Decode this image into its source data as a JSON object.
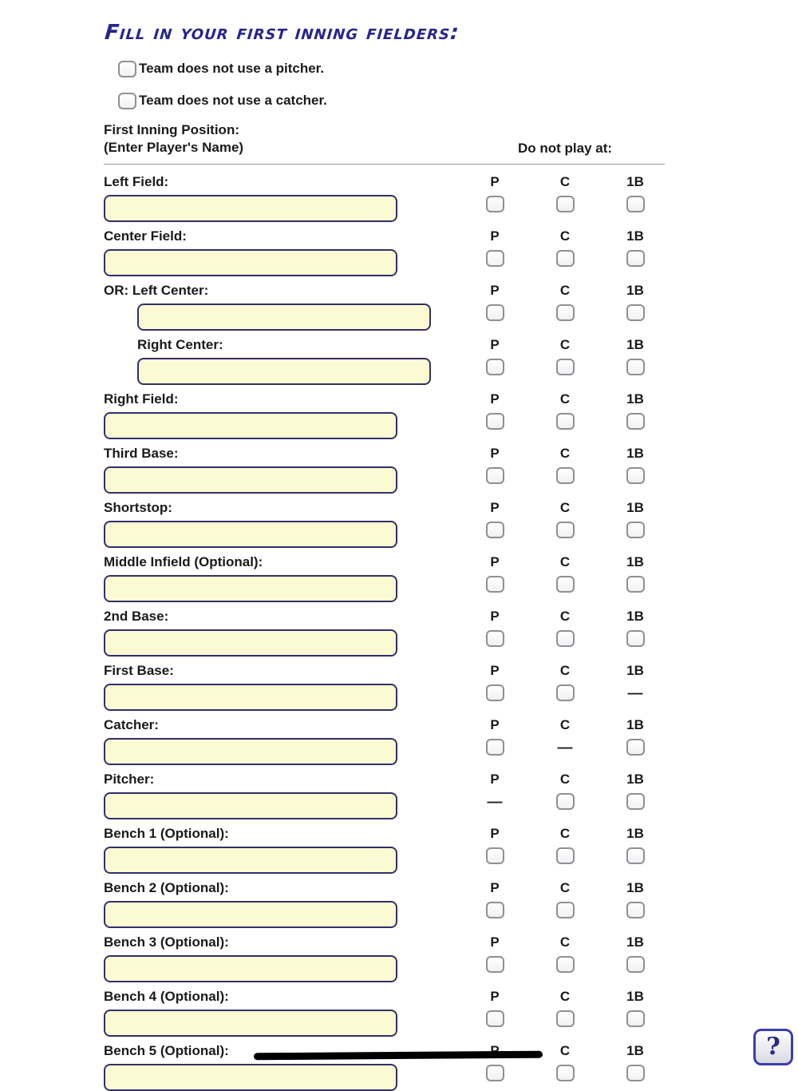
{
  "page": {
    "title": "Fill in your first inning fielders:",
    "toggles": [
      {
        "label": "Team does not use a pitcher."
      },
      {
        "label": "Team does not use a catcher."
      }
    ],
    "table_header": {
      "position_line1": "First Inning Position:",
      "position_line2": "(Enter Player's Name)",
      "do_not_play": "Do not play at:"
    },
    "columns": [
      "P",
      "C",
      "1B"
    ],
    "glyphs": {
      "dash": "—",
      "help": "?"
    },
    "colors": {
      "title_navy": "#26268c",
      "input_background": "#fbfad2",
      "input_border": "#30306a",
      "checkbox_border": "#8f8f94"
    },
    "rows": [
      {
        "label": "Left Field:",
        "input_value": ""
      },
      {
        "label": "Center Field:",
        "input_value": ""
      },
      {
        "label": "OR: Left Center:",
        "input_value": "",
        "input_indent": true
      },
      {
        "label": "Right Center:",
        "input_value": "",
        "label_indent": true,
        "input_indent": true
      },
      {
        "label": "Right Field:",
        "input_value": ""
      },
      {
        "label": "Third Base:",
        "input_value": ""
      },
      {
        "label": "Shortstop:",
        "input_value": ""
      },
      {
        "label": "Middle Infield (Optional):",
        "input_value": ""
      },
      {
        "label": "2nd Base:",
        "input_value": ""
      },
      {
        "label": "First Base:",
        "input_value": "",
        "na": "1B"
      },
      {
        "label": "Catcher:",
        "input_value": "",
        "na": "C"
      },
      {
        "label": "Pitcher:",
        "input_value": "",
        "na": "P"
      },
      {
        "label": "Bench 1 (Optional):",
        "input_value": ""
      },
      {
        "label": "Bench 2 (Optional):",
        "input_value": ""
      },
      {
        "label": "Bench 3 (Optional):",
        "input_value": ""
      },
      {
        "label": "Bench 4 (Optional):",
        "input_value": ""
      },
      {
        "label": "Bench 5 (Optional):",
        "input_value": ""
      }
    ]
  }
}
